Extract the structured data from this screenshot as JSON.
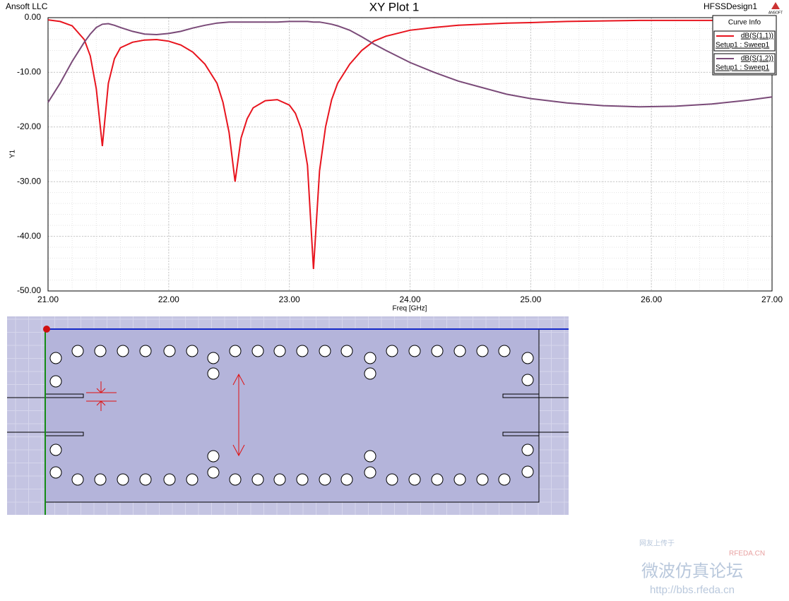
{
  "header": {
    "left": "Ansoft LLC",
    "right": "HFSSDesign1",
    "logo": "ANSOFT"
  },
  "chart_data": {
    "type": "line",
    "title": "XY Plot 1",
    "x_label": "Freq [GHz]",
    "y_label": "Y1",
    "legend_title": "Curve Info",
    "legend_position": "upper right",
    "grid": true,
    "xlim": [
      21,
      27
    ],
    "ylim": [
      -50,
      0
    ],
    "xticks": [
      {
        "value": 21,
        "label": "21.00"
      },
      {
        "value": 22,
        "label": "22.00"
      },
      {
        "value": 23,
        "label": "23.00"
      },
      {
        "value": 24,
        "label": "24.00"
      },
      {
        "value": 25,
        "label": "25.00"
      },
      {
        "value": 26,
        "label": "26.00"
      },
      {
        "value": 27,
        "label": "27.00"
      }
    ],
    "yticks": [
      {
        "value": 0,
        "label": "0.00"
      },
      {
        "value": -10,
        "label": "-10.00"
      },
      {
        "value": -20,
        "label": "-20.00"
      },
      {
        "value": -30,
        "label": "-30.00"
      },
      {
        "value": -40,
        "label": "-40.00"
      },
      {
        "value": -50,
        "label": "-50.00"
      }
    ],
    "x": [
      21.0,
      21.1,
      21.2,
      21.3,
      21.35,
      21.4,
      21.45,
      21.5,
      21.55,
      21.6,
      21.7,
      21.8,
      21.9,
      22.0,
      22.1,
      22.2,
      22.3,
      22.4,
      22.45,
      22.5,
      22.55,
      22.6,
      22.65,
      22.7,
      22.8,
      22.9,
      23.0,
      23.05,
      23.1,
      23.15,
      23.2,
      23.25,
      23.3,
      23.35,
      23.4,
      23.5,
      23.6,
      23.7,
      23.8,
      24.0,
      24.2,
      24.4,
      24.6,
      24.8,
      25.0,
      25.3,
      25.6,
      25.9,
      26.2,
      26.5,
      26.8,
      27.0
    ],
    "series": [
      {
        "name": "dB(S(1,1))",
        "setup": "Setup1 : Sweep1",
        "color": "#e8141e",
        "values": [
          -0.4,
          -0.7,
          -1.5,
          -4,
          -7,
          -13,
          -23.5,
          -12,
          -7.5,
          -5.5,
          -4.5,
          -4.1,
          -4,
          -4.3,
          -5,
          -6.3,
          -8.5,
          -12,
          -15.5,
          -21,
          -30,
          -22,
          -18.5,
          -16.5,
          -15.2,
          -15,
          -16,
          -17.5,
          -20.5,
          -27,
          -46,
          -28,
          -20,
          -15,
          -12,
          -8.5,
          -6,
          -4.3,
          -3.4,
          -2.3,
          -1.8,
          -1.4,
          -1.2,
          -1,
          -0.9,
          -0.7,
          -0.6,
          -0.5,
          -0.5,
          -0.5,
          -0.4,
          -0.4
        ]
      },
      {
        "name": "dB(S(1,2))",
        "setup": "Setup1 : Sweep1",
        "color": "#7a4a78",
        "values": [
          -15.5,
          -12,
          -8,
          -4.5,
          -3,
          -1.8,
          -1.2,
          -1.1,
          -1.4,
          -1.8,
          -2.5,
          -3,
          -3.1,
          -2.9,
          -2.5,
          -1.9,
          -1.4,
          -1,
          -0.9,
          -0.8,
          -0.8,
          -0.8,
          -0.8,
          -0.8,
          -0.8,
          -0.8,
          -0.7,
          -0.7,
          -0.7,
          -0.7,
          -0.8,
          -0.8,
          -1,
          -1.2,
          -1.5,
          -2.3,
          -3.5,
          -4.8,
          -6,
          -8.2,
          -10,
          -11.6,
          -12.8,
          -14,
          -14.8,
          -15.6,
          -16.1,
          -16.3,
          -16.2,
          -15.8,
          -15.1,
          -14.5
        ]
      }
    ]
  },
  "watermark": {
    "uploader": "网友上传于",
    "site": "RFEDA.CN",
    "forum": "微波仿真论坛",
    "url": "http://bbs.rfeda.cn"
  }
}
